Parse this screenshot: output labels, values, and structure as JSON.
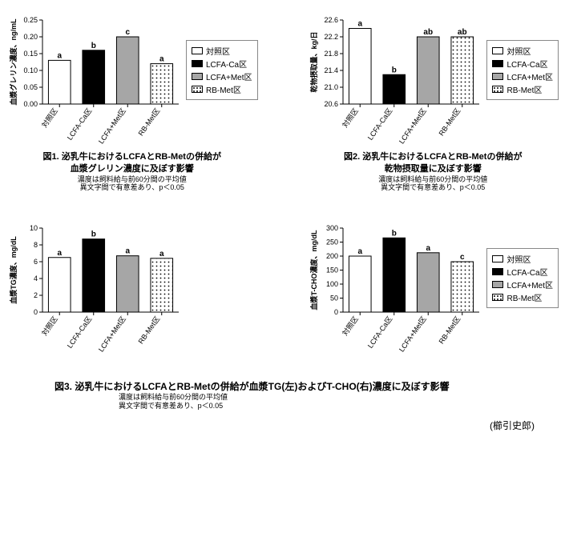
{
  "groups": [
    "対照区",
    "LCFA-Ca区",
    "LCFA+Met区",
    "RB-Met区"
  ],
  "fills": {
    "control": {
      "type": "solid",
      "color": "#ffffff"
    },
    "lcfa_ca": {
      "type": "solid",
      "color": "#000000"
    },
    "lcfa_met": {
      "type": "solid",
      "color": "#a6a6a6"
    },
    "rb_met": {
      "type": "dots",
      "color": "#ffffff",
      "dot": "#000000"
    }
  },
  "border_color": "#000000",
  "axis_color": "#000000",
  "axis_fontsize": 9,
  "label_fontsize": 9,
  "sig_fontsize": 10,
  "xlabel_rotation": -55,
  "legend": {
    "items": [
      {
        "label": "対照区",
        "fill": "control"
      },
      {
        "label": "LCFA-Ca区",
        "fill": "lcfa_ca"
      },
      {
        "label": "LCFA+Met区",
        "fill": "lcfa_met"
      },
      {
        "label": "RB-Met区",
        "fill": "rb_met"
      }
    ]
  },
  "fig1": {
    "ylabel": "血漿グレリン濃度、ng/mL",
    "ylim": [
      0,
      0.25
    ],
    "ytick_step": 0.05,
    "y_decimals": 2,
    "values": [
      0.13,
      0.16,
      0.2,
      0.12
    ],
    "sig": [
      "a",
      "b",
      "c",
      "a"
    ],
    "caption_line1": "図1. 泌乳牛におけるLCFAとRB-Metの併給が",
    "caption_line2": "血漿グレリン濃度に及ぼす影響",
    "sub1": "濃度は飼料給与前60分間の平均値",
    "sub2": "異文字間で有意差あり、p＜0.05",
    "show_legend": true
  },
  "fig2": {
    "ylabel": "乾物摂取量、kg/日",
    "ylim": [
      20.6,
      22.6
    ],
    "ytick_step": 0.4,
    "y_decimals": 1,
    "values": [
      22.4,
      21.3,
      22.2,
      22.2
    ],
    "sig": [
      "a",
      "b",
      "ab",
      "ab"
    ],
    "caption_line1": "図2. 泌乳牛におけるLCFAとRB-Metの併給が",
    "caption_line2": "乾物摂取量に及ぼす影響",
    "sub1": "濃度は飼料給与前60分間の平均値",
    "sub2": "異文字間で有意差あり、p＜0.05",
    "show_legend": true
  },
  "fig3a": {
    "ylabel": "血漿TG濃度、mg/dL",
    "ylim": [
      0,
      10
    ],
    "ytick_step": 2,
    "y_decimals": 0,
    "values": [
      6.5,
      8.7,
      6.7,
      6.4
    ],
    "sig": [
      "a",
      "b",
      "a",
      "a"
    ],
    "show_legend": false
  },
  "fig3b": {
    "ylabel": "血漿T-CHO濃度、mg/dL",
    "ylim": [
      0,
      300
    ],
    "ytick_step": 50,
    "y_decimals": 0,
    "values": [
      200,
      265,
      212,
      180
    ],
    "sig": [
      "a",
      "b",
      "a",
      "c"
    ],
    "show_legend": true
  },
  "fig3_caption": {
    "line1": "図3. 泌乳牛におけるLCFAとRB-Metの併給が血漿TG(左)およびT-CHO(右)濃度に及ぼす影響",
    "sub1": "濃度は飼料給与前60分間の平均値",
    "sub2": "異文字間で有意差あり、p＜0.05"
  },
  "author": "(櫛引史郎)"
}
